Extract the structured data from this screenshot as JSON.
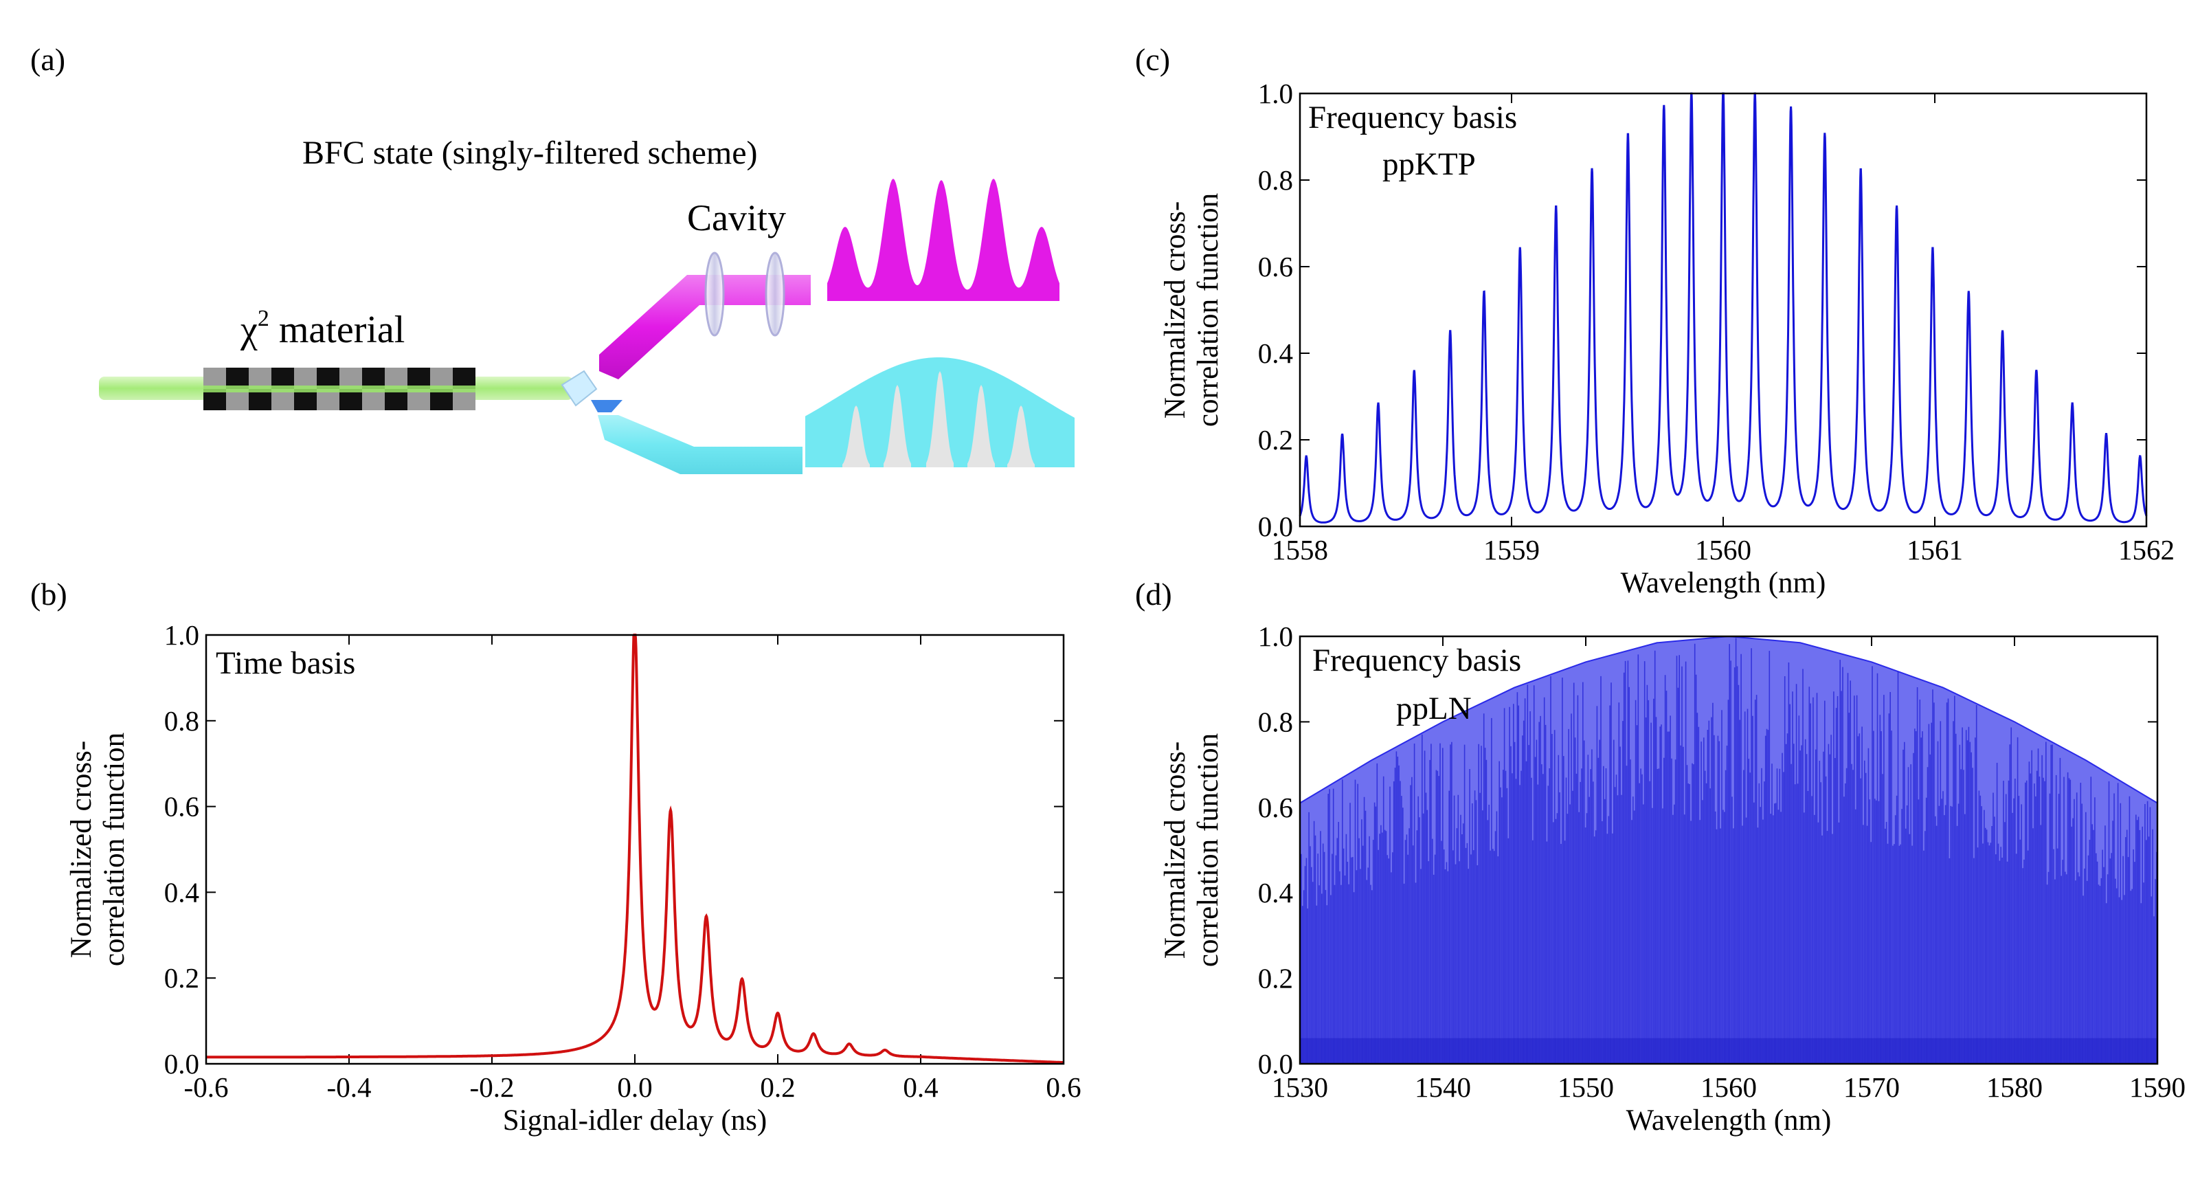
{
  "panel_labels": {
    "a": "(a)",
    "b": "(b)",
    "c": "(c)",
    "d": "(d)"
  },
  "schematic": {
    "title": "BFC state (singly-filtered scheme)",
    "material_label": "χ",
    "material_superscript": "2",
    "material_suffix": " material",
    "cavity_label": "Cavity",
    "colors": {
      "pump": "#9be86a",
      "signal": "#e21ae6",
      "idler": "#72e8f2",
      "idler_peaks": "#e4e4e4"
    }
  },
  "chart_data": [
    {
      "panel": "b",
      "type": "line",
      "annotation": "Time basis",
      "xlabel": "Signal-idler delay (ns)",
      "ylabel": [
        "Normalized cross-",
        "correlation  function"
      ],
      "xlim": [
        -0.6,
        0.6
      ],
      "ylim": [
        0.0,
        1.0
      ],
      "xticks": [
        "-0.6",
        "-0.4",
        "-0.2",
        "0.0",
        "0.2",
        "0.4",
        "0.6"
      ],
      "yticks": [
        "0.0",
        "0.2",
        "0.4",
        "0.6",
        "0.8",
        "1.0"
      ],
      "color": "#d01010",
      "baseline_level": 0.015,
      "peaks": [
        {
          "x": 0.0,
          "y": 1.0
        },
        {
          "x": 0.05,
          "y": 0.55
        },
        {
          "x": 0.1,
          "y": 0.31
        },
        {
          "x": 0.15,
          "y": 0.17
        },
        {
          "x": 0.2,
          "y": 0.095
        },
        {
          "x": 0.25,
          "y": 0.05
        },
        {
          "x": 0.3,
          "y": 0.028
        },
        {
          "x": 0.35,
          "y": 0.015
        }
      ]
    },
    {
      "panel": "c",
      "type": "line",
      "annotation": [
        "Frequency basis",
        "ppKTP"
      ],
      "xlabel": "Wavelength (nm)",
      "ylabel": [
        "Normalized cross-",
        "correlation function"
      ],
      "xlim": [
        1558,
        1562
      ],
      "ylim": [
        0.0,
        1.0
      ],
      "xticks": [
        "1558",
        "1559",
        "1560",
        "1561",
        "1562"
      ],
      "yticks": [
        "0.0",
        "0.2",
        "0.4",
        "0.6",
        "0.8",
        "1.0"
      ],
      "color": "#1414d8",
      "peaks": [
        {
          "x": 1558.03,
          "y": 0.16
        },
        {
          "x": 1558.2,
          "y": 0.21
        },
        {
          "x": 1558.37,
          "y": 0.28
        },
        {
          "x": 1558.54,
          "y": 0.355
        },
        {
          "x": 1558.71,
          "y": 0.445
        },
        {
          "x": 1558.87,
          "y": 0.535
        },
        {
          "x": 1559.04,
          "y": 0.635
        },
        {
          "x": 1559.21,
          "y": 0.73
        },
        {
          "x": 1559.38,
          "y": 0.815
        },
        {
          "x": 1559.55,
          "y": 0.895
        },
        {
          "x": 1559.72,
          "y": 0.955
        },
        {
          "x": 1559.85,
          "y": 0.99
        },
        {
          "x": 1560.0,
          "y": 1.0
        },
        {
          "x": 1560.15,
          "y": 0.99
        },
        {
          "x": 1560.32,
          "y": 0.955
        },
        {
          "x": 1560.48,
          "y": 0.895
        },
        {
          "x": 1560.65,
          "y": 0.815
        },
        {
          "x": 1560.82,
          "y": 0.73
        },
        {
          "x": 1560.99,
          "y": 0.635
        },
        {
          "x": 1561.16,
          "y": 0.535
        },
        {
          "x": 1561.32,
          "y": 0.445
        },
        {
          "x": 1561.48,
          "y": 0.355
        },
        {
          "x": 1561.65,
          "y": 0.28
        },
        {
          "x": 1561.81,
          "y": 0.21
        },
        {
          "x": 1561.97,
          "y": 0.16
        }
      ]
    },
    {
      "panel": "d",
      "type": "area",
      "annotation": [
        "Frequency basis",
        "ppLN"
      ],
      "xlabel": "Wavelength (nm)",
      "ylabel": [
        "Normalized cross-",
        "correlation function"
      ],
      "xlim": [
        1530,
        1590
      ],
      "ylim": [
        0.0,
        1.0
      ],
      "xticks": [
        "1530",
        "1540",
        "1550",
        "1560",
        "1570",
        "1580",
        "1590"
      ],
      "yticks": [
        "0.0",
        "0.2",
        "0.4",
        "0.6",
        "0.8",
        "1.0"
      ],
      "color": "#2a2ae8",
      "envelope": [
        {
          "x": 1530,
          "y": 0.61
        },
        {
          "x": 1535,
          "y": 0.71
        },
        {
          "x": 1540,
          "y": 0.8
        },
        {
          "x": 1545,
          "y": 0.88
        },
        {
          "x": 1550,
          "y": 0.94
        },
        {
          "x": 1555,
          "y": 0.985
        },
        {
          "x": 1560,
          "y": 1.0
        },
        {
          "x": 1565,
          "y": 0.985
        },
        {
          "x": 1570,
          "y": 0.94
        },
        {
          "x": 1575,
          "y": 0.88
        },
        {
          "x": 1580,
          "y": 0.8
        },
        {
          "x": 1585,
          "y": 0.71
        },
        {
          "x": 1590,
          "y": 0.61
        }
      ]
    }
  ]
}
